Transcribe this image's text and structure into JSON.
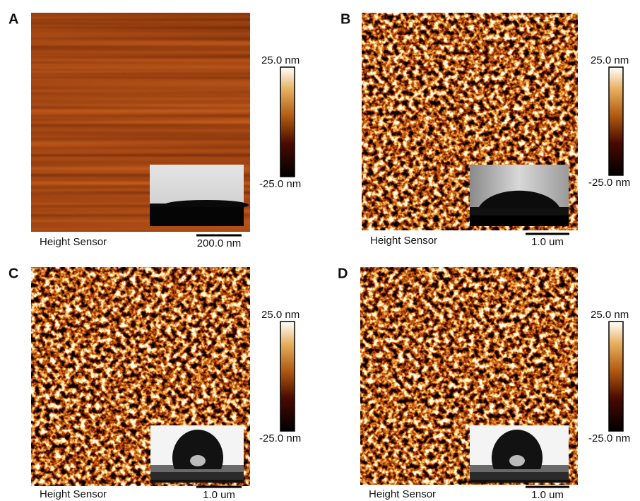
{
  "panels": [
    {
      "label": "A",
      "colorbar_max": "25.0 nm",
      "colorbar_min": "-25.0 nm",
      "channel": "Height Sensor",
      "scale_bar": "200.0 nm"
    },
    {
      "label": "B",
      "colorbar_max": "25.0 nm",
      "colorbar_min": "-25.0 nm",
      "channel": "Height Sensor",
      "scale_bar": "1.0 um"
    },
    {
      "label": "C",
      "colorbar_max": "25.0 nm",
      "colorbar_min": "-25.0 nm",
      "channel": "Height Sensor",
      "scale_bar": "1.0 um"
    },
    {
      "label": "D",
      "colorbar_max": "25.0 nm",
      "colorbar_min": "-25.0 nm",
      "channel": "Height Sensor",
      "scale_bar": "1.0 um"
    }
  ]
}
